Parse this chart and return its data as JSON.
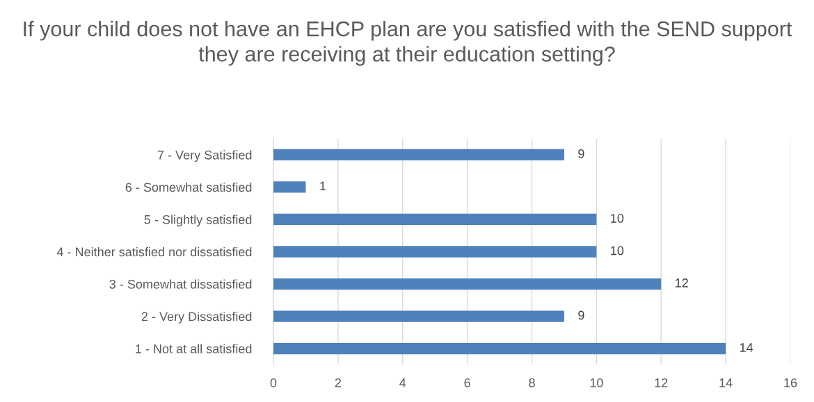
{
  "chart_data": {
    "type": "bar",
    "orientation": "horizontal",
    "title": "If your child does not have an EHCP plan are you satisfied with the SEND support they are receiving at their education setting?",
    "categories": [
      "7 - Very Satisfied",
      "6 - Somewhat satisfied",
      "5 - Slightly satisfied",
      "4 - Neither satisfied nor dissatisfied",
      "3 - Somewhat dissatisfied",
      "2 - Very Dissatisfied",
      "1 - Not at all satisfied"
    ],
    "values": [
      9,
      1,
      10,
      10,
      12,
      9,
      14
    ],
    "color": "#4f81bd",
    "xlim": [
      0,
      16
    ],
    "xticks": [
      0,
      2,
      4,
      6,
      8,
      10,
      12,
      14,
      16
    ],
    "grid": "x",
    "data_labels": true
  }
}
